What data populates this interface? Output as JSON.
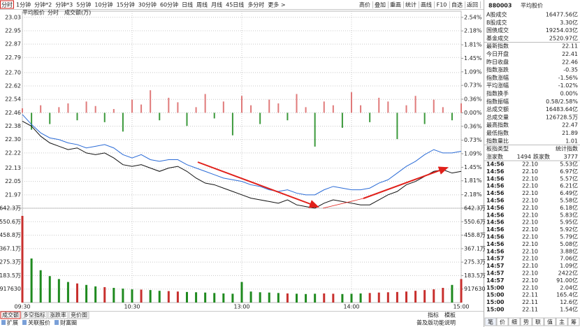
{
  "toolbar": {
    "tabs": [
      "分时",
      "1分钟",
      "分钟*2",
      "分钟*3",
      "5分钟",
      "10分钟",
      "15分钟",
      "30分钟",
      "60分钟",
      "日线",
      "周线",
      "月线",
      "45日线",
      "多分时",
      "更多 >"
    ],
    "selected": 0,
    "buttons": [
      "高价",
      "叠加",
      "重画",
      "统计",
      "画线",
      "F10",
      "自选",
      "返回"
    ]
  },
  "chart_data": [
    {
      "type": "line",
      "subtitle": [
        "平均股价",
        "分时"
      ],
      "x": [
        0,
        5,
        10,
        15,
        20,
        25,
        30,
        35,
        40,
        45,
        50,
        55,
        60,
        65,
        70,
        75,
        80,
        85,
        90,
        95,
        100,
        105,
        110,
        115,
        120,
        125,
        130,
        135,
        140,
        145,
        150,
        155,
        160,
        165,
        170,
        175,
        180,
        185,
        190,
        195,
        200,
        205,
        210,
        215,
        220,
        225,
        230,
        235,
        240
      ],
      "xlim": [
        0,
        240
      ],
      "ylim": [
        21.89,
        23.05
      ],
      "yticks": [
        23.03,
        22.95,
        22.87,
        22.79,
        {
          "value": 22.7,
          "label": "22.70"
        },
        22.62,
        22.54,
        22.46,
        22.38,
        {
          "value": 22.3,
          "label": "22.30"
        },
        22.22,
        22.13,
        22.05,
        21.97
      ],
      "y2lim": [
        -2.54,
        2.63
      ],
      "y2ticks": [
        {
          "value": 2.54,
          "label": "2.54%"
        },
        {
          "value": 2.18,
          "label": "2.18%"
        },
        {
          "value": 1.81,
          "label": "1.81%"
        },
        {
          "value": 1.45,
          "label": "1.45%"
        },
        {
          "value": 1.09,
          "label": "1.09%"
        },
        {
          "value": 0.73,
          "label": "0.73%"
        },
        {
          "value": 0.36,
          "label": "0.36%"
        },
        {
          "value": 0,
          "label": "0.00%"
        },
        {
          "value": -0.36,
          "label": "0.36%"
        },
        {
          "value": -0.73,
          "label": "0.73%"
        },
        {
          "value": -1.09,
          "label": "1.09%"
        },
        {
          "value": -1.45,
          "label": "1.45%"
        },
        {
          "value": -1.81,
          "label": "1.81%"
        },
        {
          "value": -2.18,
          "label": "2.18%"
        }
      ],
      "grid": true,
      "up_color": "#c8302e",
      "down_color": "#1f8a1f",
      "series": [
        {
          "type": "line",
          "color": "#111111",
          "values": [
            22.41,
            22.38,
            22.32,
            22.28,
            22.26,
            22.24,
            22.25,
            22.22,
            22.21,
            22.22,
            22.19,
            22.15,
            22.14,
            22.15,
            22.13,
            22.11,
            22.13,
            22.14,
            22.11,
            22.07,
            22.04,
            22.03,
            22.01,
            21.99,
            21.97,
            21.95,
            21.94,
            21.93,
            21.92,
            21.94,
            21.91,
            21.9,
            21.89,
            21.92,
            21.94,
            21.93,
            21.92,
            21.91,
            21.91,
            21.94,
            21.97,
            21.99,
            22.03,
            22.05,
            22.08,
            22.11,
            22.12,
            22.1,
            22.11
          ]
        },
        {
          "type": "line",
          "color": "#2a6bd6",
          "values": [
            22.45,
            22.39,
            22.34,
            22.31,
            22.3,
            22.28,
            22.27,
            22.25,
            22.26,
            22.27,
            22.25,
            22.21,
            22.19,
            22.21,
            22.18,
            22.17,
            22.18,
            22.18,
            22.15,
            22.13,
            22.11,
            22.09,
            22.07,
            22.06,
            22.05,
            22.03,
            22.02,
            22.0,
            21.99,
            22.0,
            21.98,
            21.97,
            21.97,
            22.0,
            22.02,
            22.01,
            22.0,
            22.0,
            22.01,
            22.04,
            22.06,
            22.1,
            22.14,
            22.17,
            22.21,
            22.24,
            22.22,
            22.22,
            22.23
          ]
        },
        {
          "type": "bar",
          "axis": "y2",
          "color": "#e07a7a",
          "negative_color": "#3c9a3c",
          "values": [
            0.12,
            -0.45,
            0.2,
            -0.3,
            0.15,
            0.25,
            -0.2,
            0.3,
            0.18,
            -0.25,
            0.1,
            -0.5,
            0.35,
            0.22,
            0.6,
            -0.2,
            0.4,
            0.28,
            -0.35,
            0.15,
            0.5,
            -0.15,
            0.3,
            -0.6,
            0.45,
            0.2,
            -0.3,
            0.35,
            0.25,
            -0.2,
            0.5,
            0.15,
            -0.9,
            0.3,
            0.2,
            -0.4,
            0.55,
            0.2,
            -0.25,
            0.4,
            0.3,
            -0.7,
            0.2,
            0.45,
            -0.3,
            0.35,
            0.15,
            -0.2,
            0.25
          ]
        }
      ]
    },
    {
      "type": "bar",
      "title": "成交额(万)",
      "x": [
        0,
        5,
        10,
        15,
        20,
        25,
        30,
        35,
        40,
        45,
        50,
        55,
        60,
        65,
        70,
        75,
        80,
        85,
        90,
        95,
        100,
        105,
        110,
        115,
        120,
        125,
        130,
        135,
        140,
        145,
        150,
        155,
        160,
        165,
        170,
        175,
        180,
        185,
        190,
        195,
        200,
        205,
        210,
        215,
        220,
        225,
        230,
        235,
        240
      ],
      "values": [
        590,
        300,
        220,
        180,
        160,
        140,
        130,
        120,
        110,
        105,
        100,
        95,
        90,
        88,
        85,
        80,
        78,
        75,
        72,
        70,
        68,
        65,
        62,
        60,
        140,
        75,
        70,
        68,
        65,
        62,
        60,
        58,
        60,
        62,
        60,
        58,
        60,
        62,
        65,
        68,
        70,
        72,
        75,
        80,
        85,
        90,
        100,
        120,
        160
      ],
      "color_up": "#c8302e",
      "color_down": "#1f8a1f",
      "xlim": [
        0,
        240
      ],
      "xticks": [
        {
          "value": 0,
          "label": "09:30"
        },
        {
          "value": 60,
          "label": "10:30"
        },
        {
          "value": 120,
          "label": "13:00"
        },
        {
          "value": 180,
          "label": "14:00"
        },
        {
          "value": 240,
          "label": "15:00"
        }
      ],
      "ylim": [
        0,
        642.3
      ],
      "yticks": [
        {
          "value": 642.3,
          "label": "642.3万"
        },
        {
          "value": 550.6,
          "label": "550.6万"
        },
        {
          "value": 458.8,
          "label": "458.8万"
        },
        {
          "value": 367.1,
          "label": "367.1万"
        },
        {
          "value": 275.3,
          "label": "275.3万"
        },
        {
          "value": 183.5,
          "label": "183.5万"
        },
        {
          "value": 91.763,
          "label": "917630"
        }
      ],
      "y2lim": [
        0,
        642.3
      ],
      "y2ticks": [
        {
          "value": 642.3,
          "label": "642.3万"
        },
        {
          "value": 550.6,
          "label": "550.6万"
        },
        {
          "value": 458.8,
          "label": "458.8万"
        },
        {
          "value": 367.1,
          "label": "367.1万"
        },
        {
          "value": 275.3,
          "label": "275.3万"
        },
        {
          "value": 183.5,
          "label": "183.5万"
        },
        {
          "value": 91.763,
          "label": "917630"
        }
      ]
    }
  ],
  "bottom": {
    "tabs": [
      "成交额",
      "多空指标",
      "涨跌率",
      "竞价图"
    ],
    "selected": 0,
    "links": [
      "扩展",
      "关联报价",
      "财富圈"
    ],
    "tools": [
      "指标",
      "模板"
    ],
    "status": "普及版功能说明"
  },
  "panel": {
    "code": "880003",
    "name": "平均股价",
    "rows": [
      {
        "label": "A股成交",
        "value": "16477.56亿",
        "color": "#111111"
      },
      {
        "label": "B股成交",
        "value": "3.30亿",
        "color": "#111111"
      },
      {
        "label": "国债成交",
        "value": "19254.03亿",
        "color": "#111111"
      },
      {
        "label": "基金成交",
        "value": "2520.97亿",
        "color": "#111111"
      },
      {
        "label": "最新指数",
        "value": "22.11",
        "color": "#1f8a1f"
      },
      {
        "label": "今日开盘",
        "value": "22.41",
        "color": "#1f8a1f"
      },
      {
        "label": "昨日收盘",
        "value": "22.46",
        "color": "#111111"
      },
      {
        "label": "指数涨跌",
        "value": "-0.35",
        "color": "#1f8a1f"
      },
      {
        "label": "指数涨幅",
        "value": "-1.56%",
        "color": "#1f8a1f"
      },
      {
        "label": "平均涨幅",
        "value": "-1.02%",
        "color": "#1f8a1f"
      },
      {
        "label": "指数换手",
        "value": "0.00%",
        "color": "#111111"
      },
      {
        "label": "指数振幅",
        "value": "0.58/2.58%",
        "color": "#111111"
      },
      {
        "label": "总成交额",
        "value": "16483.64亿",
        "color": "#111111"
      },
      {
        "label": "总成交量",
        "value": "126728.5万",
        "color": "#111111"
      },
      {
        "label": "最高指数",
        "value": "22.47",
        "color": "#c8302e"
      },
      {
        "label": "最低指数",
        "value": "21.89",
        "color": "#1f8a1f"
      },
      {
        "label": "指数量比",
        "value": "1.01",
        "color": "#c8302e"
      },
      {
        "label": "板指类型",
        "value": "统计指数",
        "color": "#111111"
      }
    ],
    "breadth": {
      "up_label": "涨家数",
      "up": "1494",
      "down_label": "跌家数",
      "down": "3777"
    },
    "trades": [
      {
        "time": "14:56",
        "price": "22.10",
        "volume": "5.53亿",
        "color": "#1f8a1f"
      },
      {
        "time": "14:56",
        "price": "22.10",
        "volume": "6.97亿",
        "color": "#1f8a1f"
      },
      {
        "time": "14:56",
        "price": "22.10",
        "volume": "5.57亿",
        "color": "#1f8a1f"
      },
      {
        "time": "14:56",
        "price": "22.10",
        "volume": "6.21亿",
        "color": "#1f8a1f"
      },
      {
        "time": "14:56",
        "price": "22.10",
        "volume": "6.49亿",
        "color": "#1f8a1f"
      },
      {
        "time": "14:56",
        "price": "22.10",
        "volume": "5.58亿",
        "color": "#1f8a1f"
      },
      {
        "time": "14:56",
        "price": "22.10",
        "volume": "6.18亿",
        "color": "#1f8a1f"
      },
      {
        "time": "14:56",
        "price": "22.10",
        "volume": "5.83亿",
        "color": "#1f8a1f"
      },
      {
        "time": "14:56",
        "price": "22.10",
        "volume": "5.95亿",
        "color": "#1f8a1f"
      },
      {
        "time": "14:56",
        "price": "22.10",
        "volume": "5.92亿",
        "color": "#1f8a1f"
      },
      {
        "time": "14:56",
        "price": "22.10",
        "volume": "5.79亿",
        "color": "#1f8a1f"
      },
      {
        "time": "14:56",
        "price": "22.10",
        "volume": "5.08亿",
        "color": "#1f8a1f"
      },
      {
        "time": "14:56",
        "price": "22.10",
        "volume": "3.88亿",
        "color": "#1f8a1f"
      },
      {
        "time": "14:57",
        "price": "22.10",
        "volume": "7.06亿",
        "color": "#1f8a1f"
      },
      {
        "time": "14:57",
        "price": "22.10",
        "volume": "1.09亿",
        "color": "#1f8a1f"
      },
      {
        "time": "14:57",
        "price": "22.10",
        "volume": "2422亿",
        "color": "#1f8a1f"
      },
      {
        "time": "14:57",
        "price": "22.10",
        "volume": "91.00亿",
        "color": "#1f8a1f"
      },
      {
        "time": "15:00",
        "price": "22.10",
        "volume": "2.04亿",
        "color": "#1f8a1f"
      },
      {
        "time": "15:00",
        "price": "22.11",
        "volume": "165.4亿",
        "color": "#c8302e"
      },
      {
        "time": "15:00",
        "price": "22.11",
        "volume": "12.6亿",
        "color": "#c8302e"
      },
      {
        "time": "15:00",
        "price": "22.11",
        "volume": "1.54亿",
        "color": "#c8302e"
      }
    ],
    "tabs": [
      "笔",
      "价",
      "细",
      "势",
      "联",
      "值",
      "主",
      "筹"
    ]
  }
}
